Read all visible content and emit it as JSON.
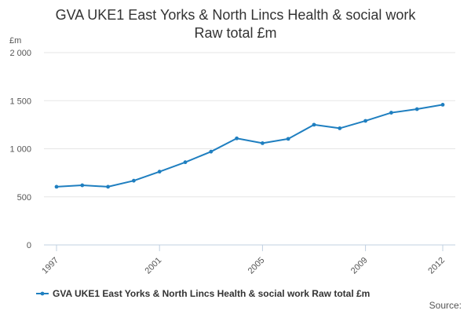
{
  "chart_data": {
    "type": "line",
    "title_line1": "GVA UKE1 East Yorks & North Lincs Health & social work",
    "title_line2": "Raw total £m",
    "y_unit": "£m",
    "x": [
      1997,
      1998,
      1999,
      2000,
      2001,
      2002,
      2003,
      2004,
      2005,
      2006,
      2007,
      2008,
      2009,
      2010,
      2011,
      2012
    ],
    "x_tick_labels": [
      "1997",
      "2001",
      "2005",
      "2009",
      "2012"
    ],
    "x_tick_values": [
      1997,
      2001,
      2005,
      2009,
      2012
    ],
    "y_tick_labels": [
      "0",
      "500",
      "1 000",
      "1 500",
      "2 000"
    ],
    "y_tick_values": [
      0,
      500,
      1000,
      1500,
      2000
    ],
    "ylim": [
      0,
      2000
    ],
    "xlim": [
      1997,
      2012
    ],
    "grid": true,
    "legend_position": "bottom",
    "series": [
      {
        "name": "GVA UKE1 East Yorks & North Lincs Health & social work Raw total £m",
        "color": "#1f7fc0",
        "values": [
          605,
          620,
          605,
          668,
          762,
          860,
          970,
          1108,
          1058,
          1103,
          1250,
          1213,
          1290,
          1375,
          1412,
          1458
        ]
      }
    ]
  },
  "source_label": "Source:"
}
